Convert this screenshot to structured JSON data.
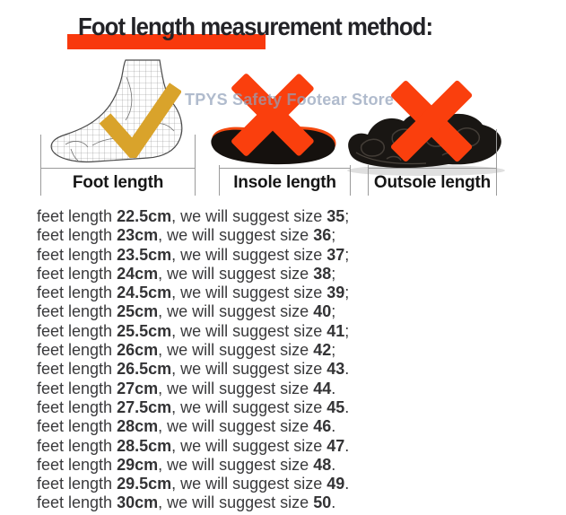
{
  "title": "Foot length measurement method:",
  "watermark": "TPYS Safety Footear Store",
  "figures": [
    {
      "label": "Foot length",
      "mark": "check"
    },
    {
      "label": "Insole length",
      "mark": "cross"
    },
    {
      "label": "Outsole length",
      "mark": "cross"
    }
  ],
  "size_chart": {
    "prefix": "feet length ",
    "middle": ", we will suggest size ",
    "rows": [
      {
        "length": "22.5cm",
        "size": "35",
        "punct": ";"
      },
      {
        "length": "23cm",
        "size": "36",
        "punct": ";"
      },
      {
        "length": "23.5cm",
        "size": "37",
        "punct": ";"
      },
      {
        "length": "24cm",
        "size": "38",
        "punct": ";"
      },
      {
        "length": "24.5cm",
        "size": "39",
        "punct": ";"
      },
      {
        "length": "25cm",
        "size": "40",
        "punct": ";"
      },
      {
        "length": "25.5cm",
        "size": "41",
        "punct": ";"
      },
      {
        "length": "26cm",
        "size": "42",
        "punct": ";"
      },
      {
        "length": "26.5cm",
        "size": "43",
        "punct": "."
      },
      {
        "length": "27cm",
        "size": "44",
        "punct": "."
      },
      {
        "length": "27.5cm",
        "size": "45",
        "punct": "."
      },
      {
        "length": "28cm",
        "size": "46",
        "punct": "."
      },
      {
        "length": "28.5cm",
        "size": "47",
        "punct": "."
      },
      {
        "length": "29cm",
        "size": "48",
        "punct": "."
      },
      {
        "length": "29.5cm",
        "size": "49",
        "punct": "."
      },
      {
        "length": "30cm",
        "size": "50",
        "punct": "."
      }
    ]
  },
  "colors": {
    "accent_orange": "#fa3f0d",
    "check_gold": "#d9a32b",
    "body_text": "#3a3a3c",
    "title_text": "#232327",
    "watermark": "#93a2ba"
  }
}
